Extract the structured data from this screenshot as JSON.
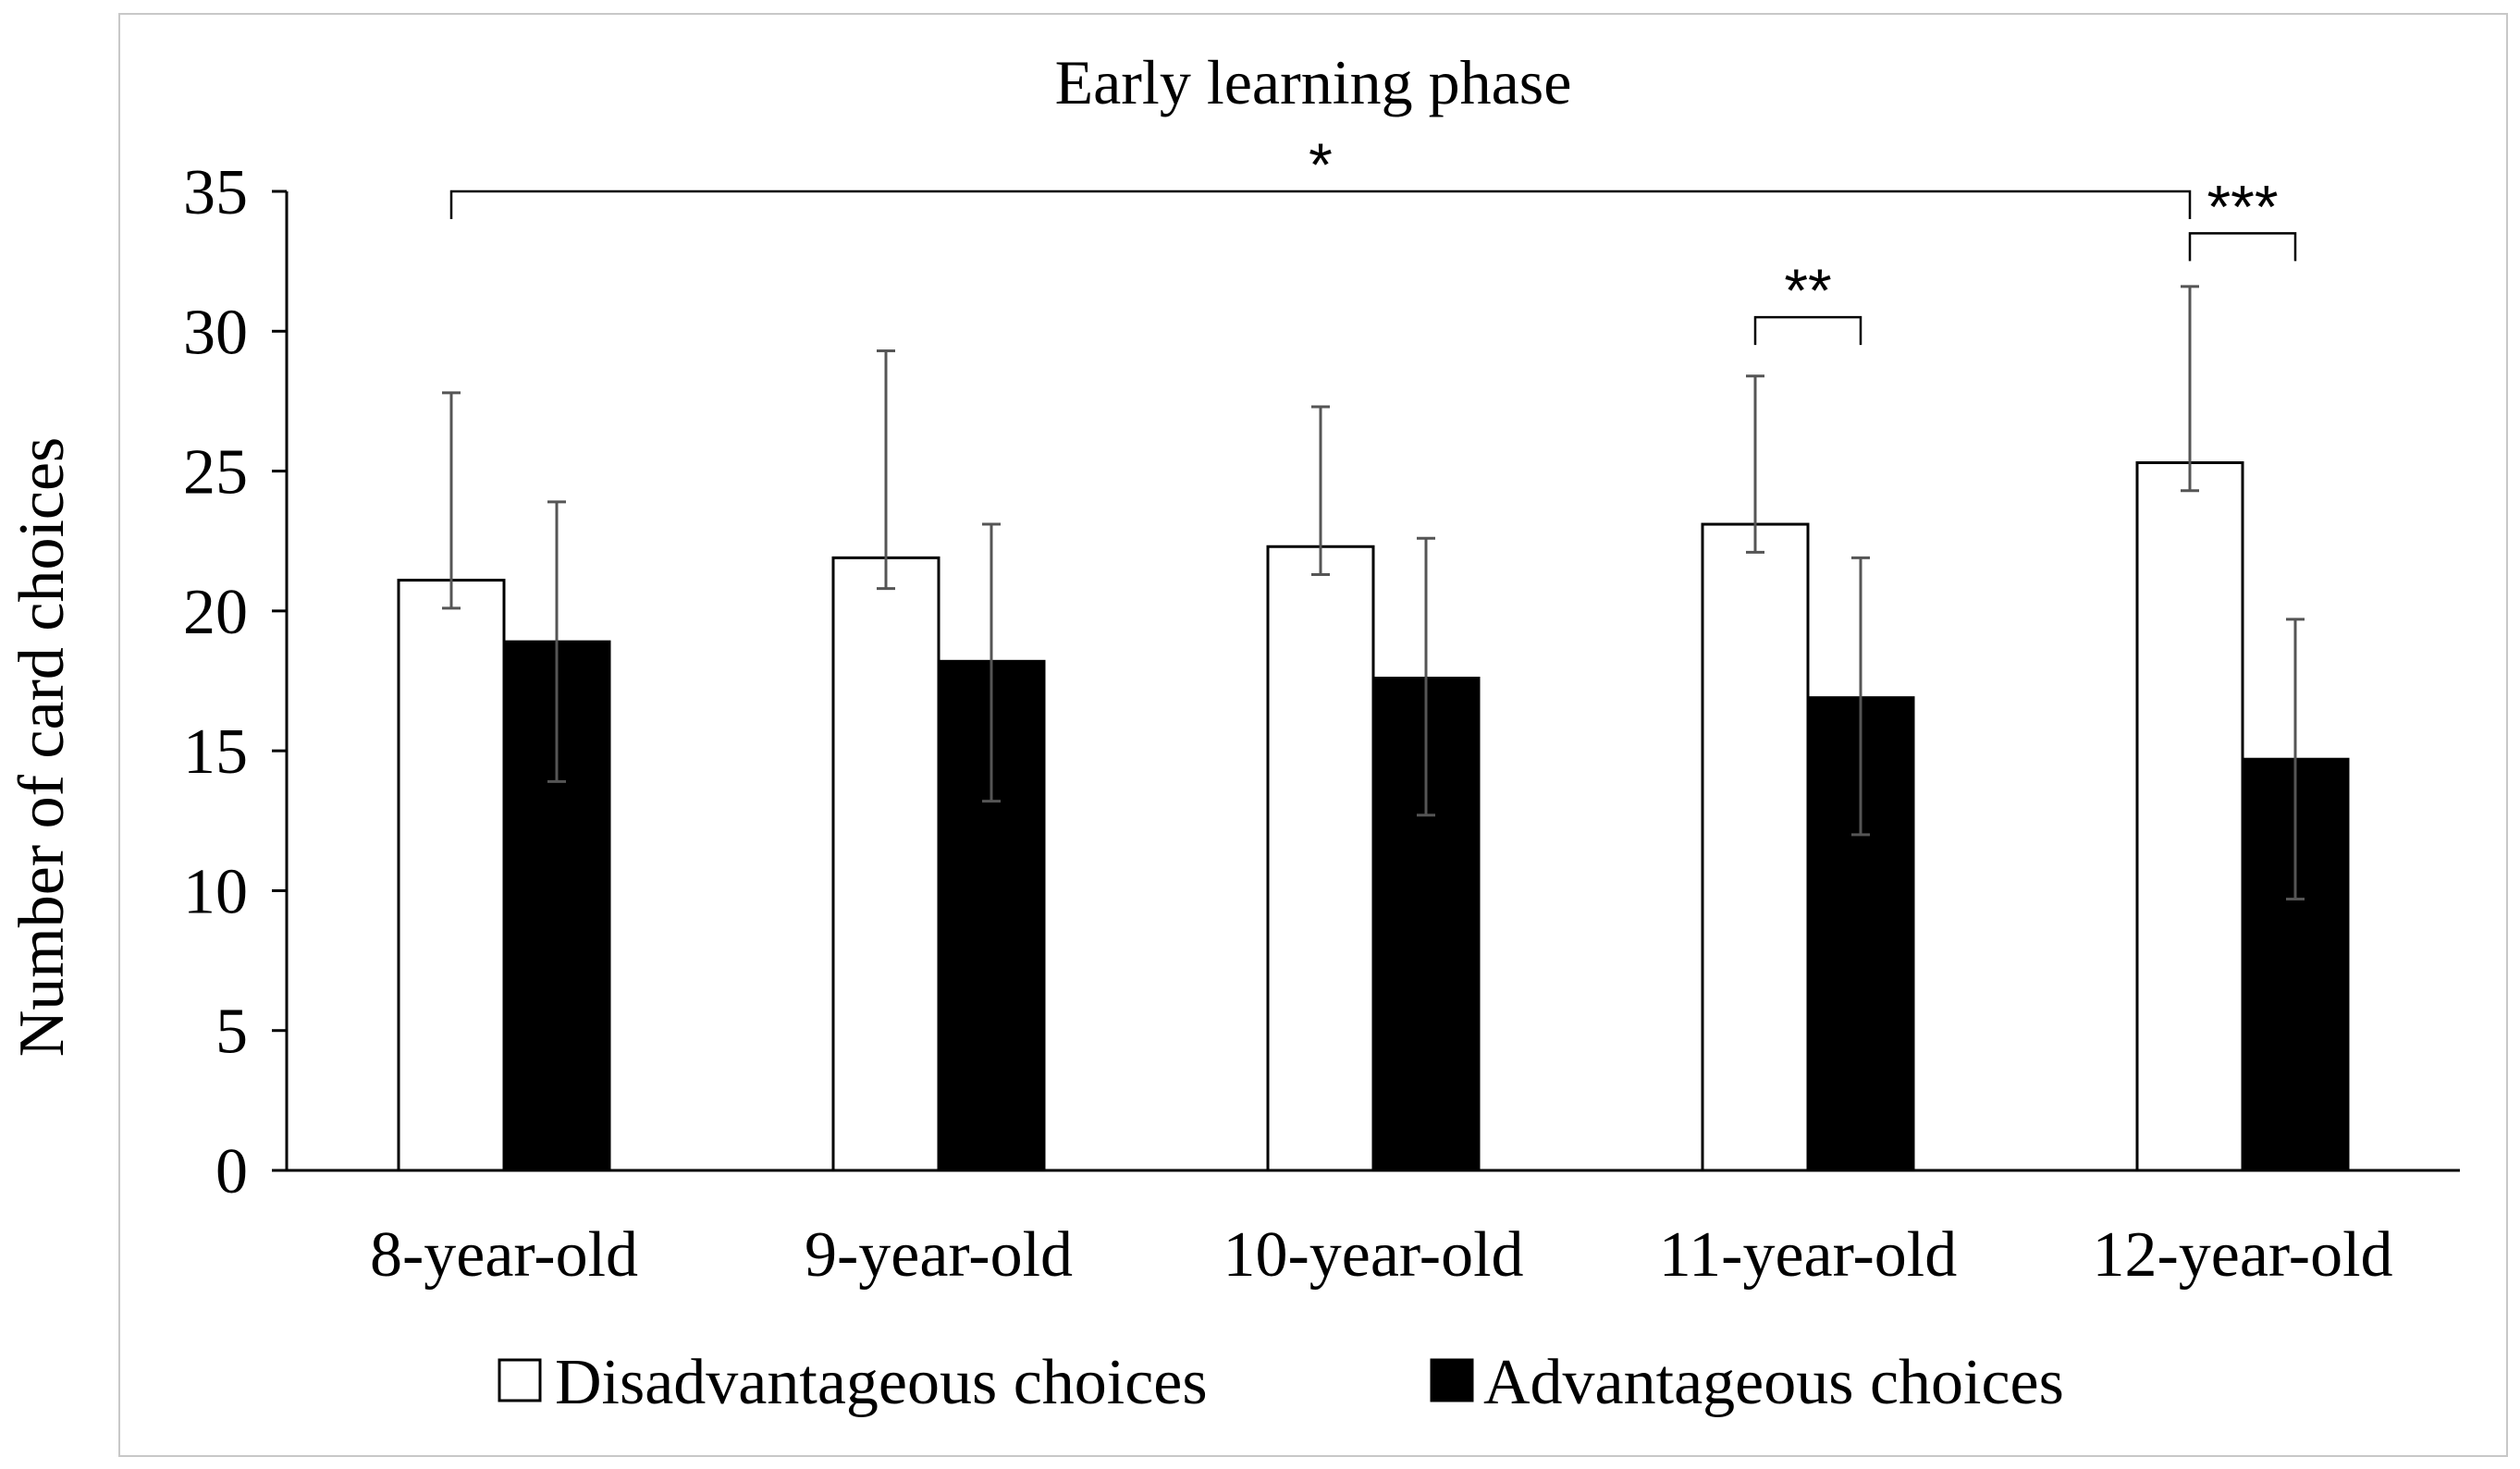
{
  "chart_data": {
    "type": "bar",
    "title": "Early learning phase",
    "xlabel": "",
    "ylabel": "Number of card choices",
    "ylim": [
      0,
      35
    ],
    "yticks": [
      0,
      5,
      10,
      15,
      20,
      25,
      30,
      35
    ],
    "categories": [
      "8-year-old",
      "9-year-old",
      "10-year-old",
      "11-year-old",
      "12-year-old"
    ],
    "series": [
      {
        "name": "Disadvantageous choices",
        "color": "#ffffff",
        "stroke": "#000000",
        "values": [
          21.1,
          21.9,
          22.3,
          23.1,
          25.3
        ],
        "error_upper": [
          27.8,
          29.3,
          27.3,
          28.4,
          31.6
        ],
        "error_lower": [
          20.1,
          20.8,
          21.3,
          22.1,
          24.3
        ]
      },
      {
        "name": "Advantageous choices",
        "color": "#000000",
        "stroke": "#000000",
        "values": [
          18.9,
          18.2,
          17.6,
          16.9,
          14.7
        ],
        "error_upper": [
          23.9,
          23.1,
          22.6,
          21.9,
          19.7
        ],
        "error_lower": [
          13.9,
          13.2,
          12.7,
          12.0,
          9.7
        ]
      }
    ],
    "annotations": [
      {
        "label": "*",
        "from_category": 0,
        "to_category": 4,
        "from_series": 0,
        "to_series": 0,
        "level": 35
      },
      {
        "label": "**",
        "from_category": 3,
        "to_category": 3,
        "from_series": 0,
        "to_series": 1,
        "level": 30.5
      },
      {
        "label": "***",
        "from_category": 4,
        "to_category": 4,
        "from_series": 0,
        "to_series": 1,
        "level": 33.5
      }
    ],
    "legend_position": "bottom"
  }
}
